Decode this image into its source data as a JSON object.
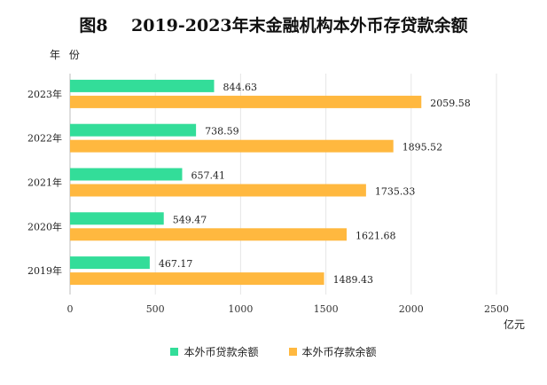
{
  "title": "图8    2019-2023年末金融机构本外币存贷款余额",
  "chart_data": {
    "type": "bar",
    "orientation": "horizontal",
    "categories": [
      "2023年",
      "2022年",
      "2021年",
      "2020年",
      "2019年"
    ],
    "series": [
      {
        "name": "本外币贷款余额",
        "color": "#33DD99",
        "values": [
          844.63,
          738.59,
          657.41,
          549.47,
          467.17
        ]
      },
      {
        "name": "本外币存款余额",
        "color": "#FFB83F",
        "values": [
          2059.58,
          1895.52,
          1735.33,
          1621.68,
          1489.43
        ]
      }
    ],
    "xlim": [
      0,
      2500
    ],
    "xticks": [
      0,
      500,
      1000,
      1500,
      2000,
      2500
    ],
    "xlabel": "亿元",
    "ylabel": "年 份",
    "grid": "vertical",
    "legend_position": "bottom"
  }
}
